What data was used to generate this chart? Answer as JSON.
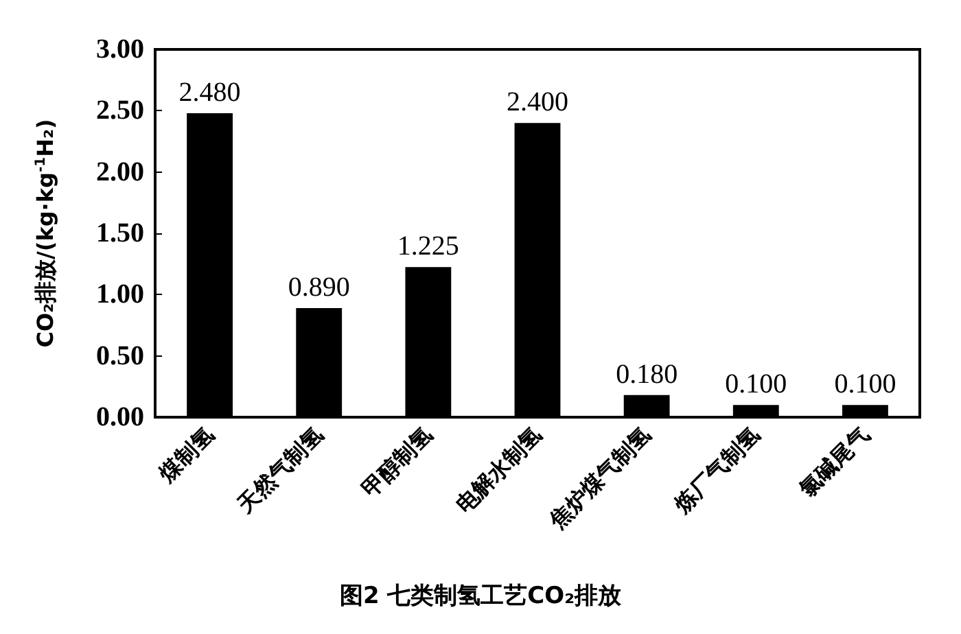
{
  "chart_data": {
    "type": "bar",
    "title": "图2 七类制氢工艺CO₂排放",
    "ylabel": "CO₂排放/(kg·kg$^{-1}$H₂)",
    "categories": [
      "煤制氢",
      "天然气制氢",
      "甲醇制氢",
      "电解水制氢",
      "焦炉煤气制氢",
      "炼厂气制氢",
      "氯碱尾气"
    ],
    "values": [
      2.48,
      0.89,
      1.225,
      2.4,
      0.18,
      0.1,
      0.1
    ],
    "value_labels": [
      "2.480",
      "0.890",
      "1.225",
      "2.400",
      "0.180",
      "0.100",
      "0.100"
    ],
    "color": "#000000",
    "ylim": [
      0,
      3
    ],
    "yticks": [
      {
        "value": 0,
        "label": "0.00"
      },
      {
        "value": 0.5,
        "label": "0.50"
      },
      {
        "value": 1,
        "label": "1.00"
      },
      {
        "value": 1.5,
        "label": "1.50"
      },
      {
        "value": 2,
        "label": "2.00"
      },
      {
        "value": 2.5,
        "label": "2.50"
      },
      {
        "value": 3,
        "label": "3.00"
      }
    ],
    "grid": false
  }
}
